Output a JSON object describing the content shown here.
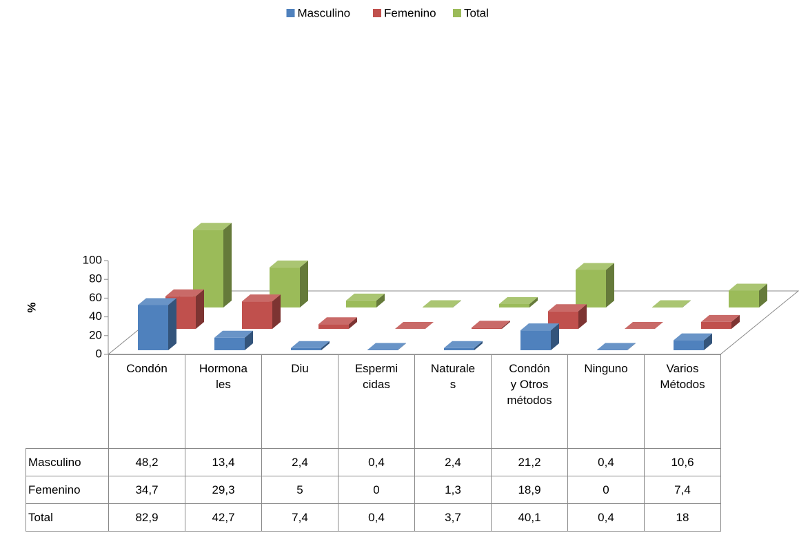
{
  "chart_data": {
    "type": "bar3d",
    "ylabel": "%",
    "categories": [
      "Condón",
      "Hormonales",
      "Diu",
      "Espermicidas",
      "Naturales",
      "Condón y Otros métodos",
      "Ninguno",
      "Varios Métodos"
    ],
    "series": [
      {
        "name": "Masculino",
        "color": "#4f81bd",
        "values": [
          48.2,
          13.4,
          2.4,
          0.4,
          2.4,
          21.2,
          0.4,
          10.6
        ],
        "value_labels": [
          "48,2",
          "13,4",
          "2,4",
          "0,4",
          "2,4",
          "21,2",
          "0,4",
          "10,6"
        ]
      },
      {
        "name": "Femenino",
        "color": "#c0504d",
        "values": [
          34.7,
          29.3,
          5,
          0,
          1.3,
          18.9,
          0,
          7.4
        ],
        "value_labels": [
          "34,7",
          "29,3",
          "5",
          "0",
          "1,3",
          "18,9",
          "0",
          "7,4"
        ]
      },
      {
        "name": "Total",
        "color": "#9bbb59",
        "values": [
          82.9,
          42.7,
          7.4,
          0.4,
          3.7,
          40.1,
          0.4,
          18
        ],
        "value_labels": [
          "82,9",
          "42,7",
          "7,4",
          "0,4",
          "3,7",
          "40,1",
          "0,4",
          "18"
        ]
      }
    ],
    "ylim": [
      0,
      100
    ],
    "yticks": [
      0,
      20,
      40,
      60,
      80,
      100
    ],
    "legend": "top"
  }
}
